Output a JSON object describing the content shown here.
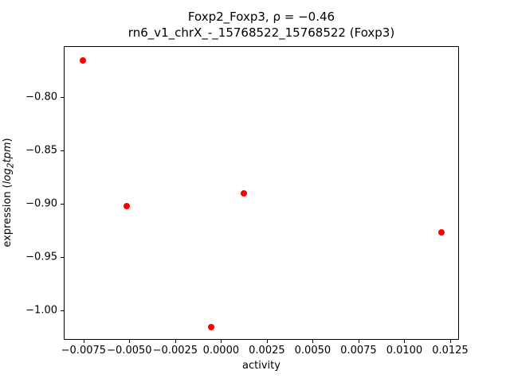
{
  "title": {
    "line1": "Foxp2_Foxp3, ρ = −0.46",
    "line2": "rn6_v1_chrX_-_15768522_15768522 (Foxp3)"
  },
  "chart_data": {
    "type": "scatter",
    "title": "Foxp2_Foxp3, ρ = −0.46 / rn6_v1_chrX_-_15768522_15768522 (Foxp3)",
    "xlabel": "activity",
    "ylabel": {
      "prefix": "expression (",
      "func": "log",
      "sub": "2",
      "var": "tpm",
      "suffix": ")"
    },
    "points": [
      {
        "x": -0.0076,
        "y": -0.765
      },
      {
        "x": -0.0052,
        "y": -0.902
      },
      {
        "x": -0.0006,
        "y": -1.015
      },
      {
        "x": 0.0012,
        "y": -0.89
      },
      {
        "x": 0.012,
        "y": -0.926
      }
    ],
    "marker_color": "#ff0000",
    "grid": false,
    "xlim": [
      -0.00858,
      0.01298
    ],
    "ylim": [
      -1.0278,
      -0.7525
    ],
    "xticks": [
      {
        "v": -0.0075,
        "label": "−0.0075"
      },
      {
        "v": -0.005,
        "label": "−0.0050"
      },
      {
        "v": -0.0025,
        "label": "−0.0025"
      },
      {
        "v": 0.0,
        "label": "0.0000"
      },
      {
        "v": 0.0025,
        "label": "0.0025"
      },
      {
        "v": 0.005,
        "label": "0.0050"
      },
      {
        "v": 0.0075,
        "label": "0.0075"
      },
      {
        "v": 0.01,
        "label": "0.0100"
      },
      {
        "v": 0.0125,
        "label": "0.0125"
      }
    ],
    "yticks": [
      {
        "v": -0.8,
        "label": "−0.80"
      },
      {
        "v": -0.85,
        "label": "−0.85"
      },
      {
        "v": -0.9,
        "label": "−0.90"
      },
      {
        "v": -0.95,
        "label": "−0.95"
      },
      {
        "v": -1.0,
        "label": "−1.00"
      }
    ]
  }
}
